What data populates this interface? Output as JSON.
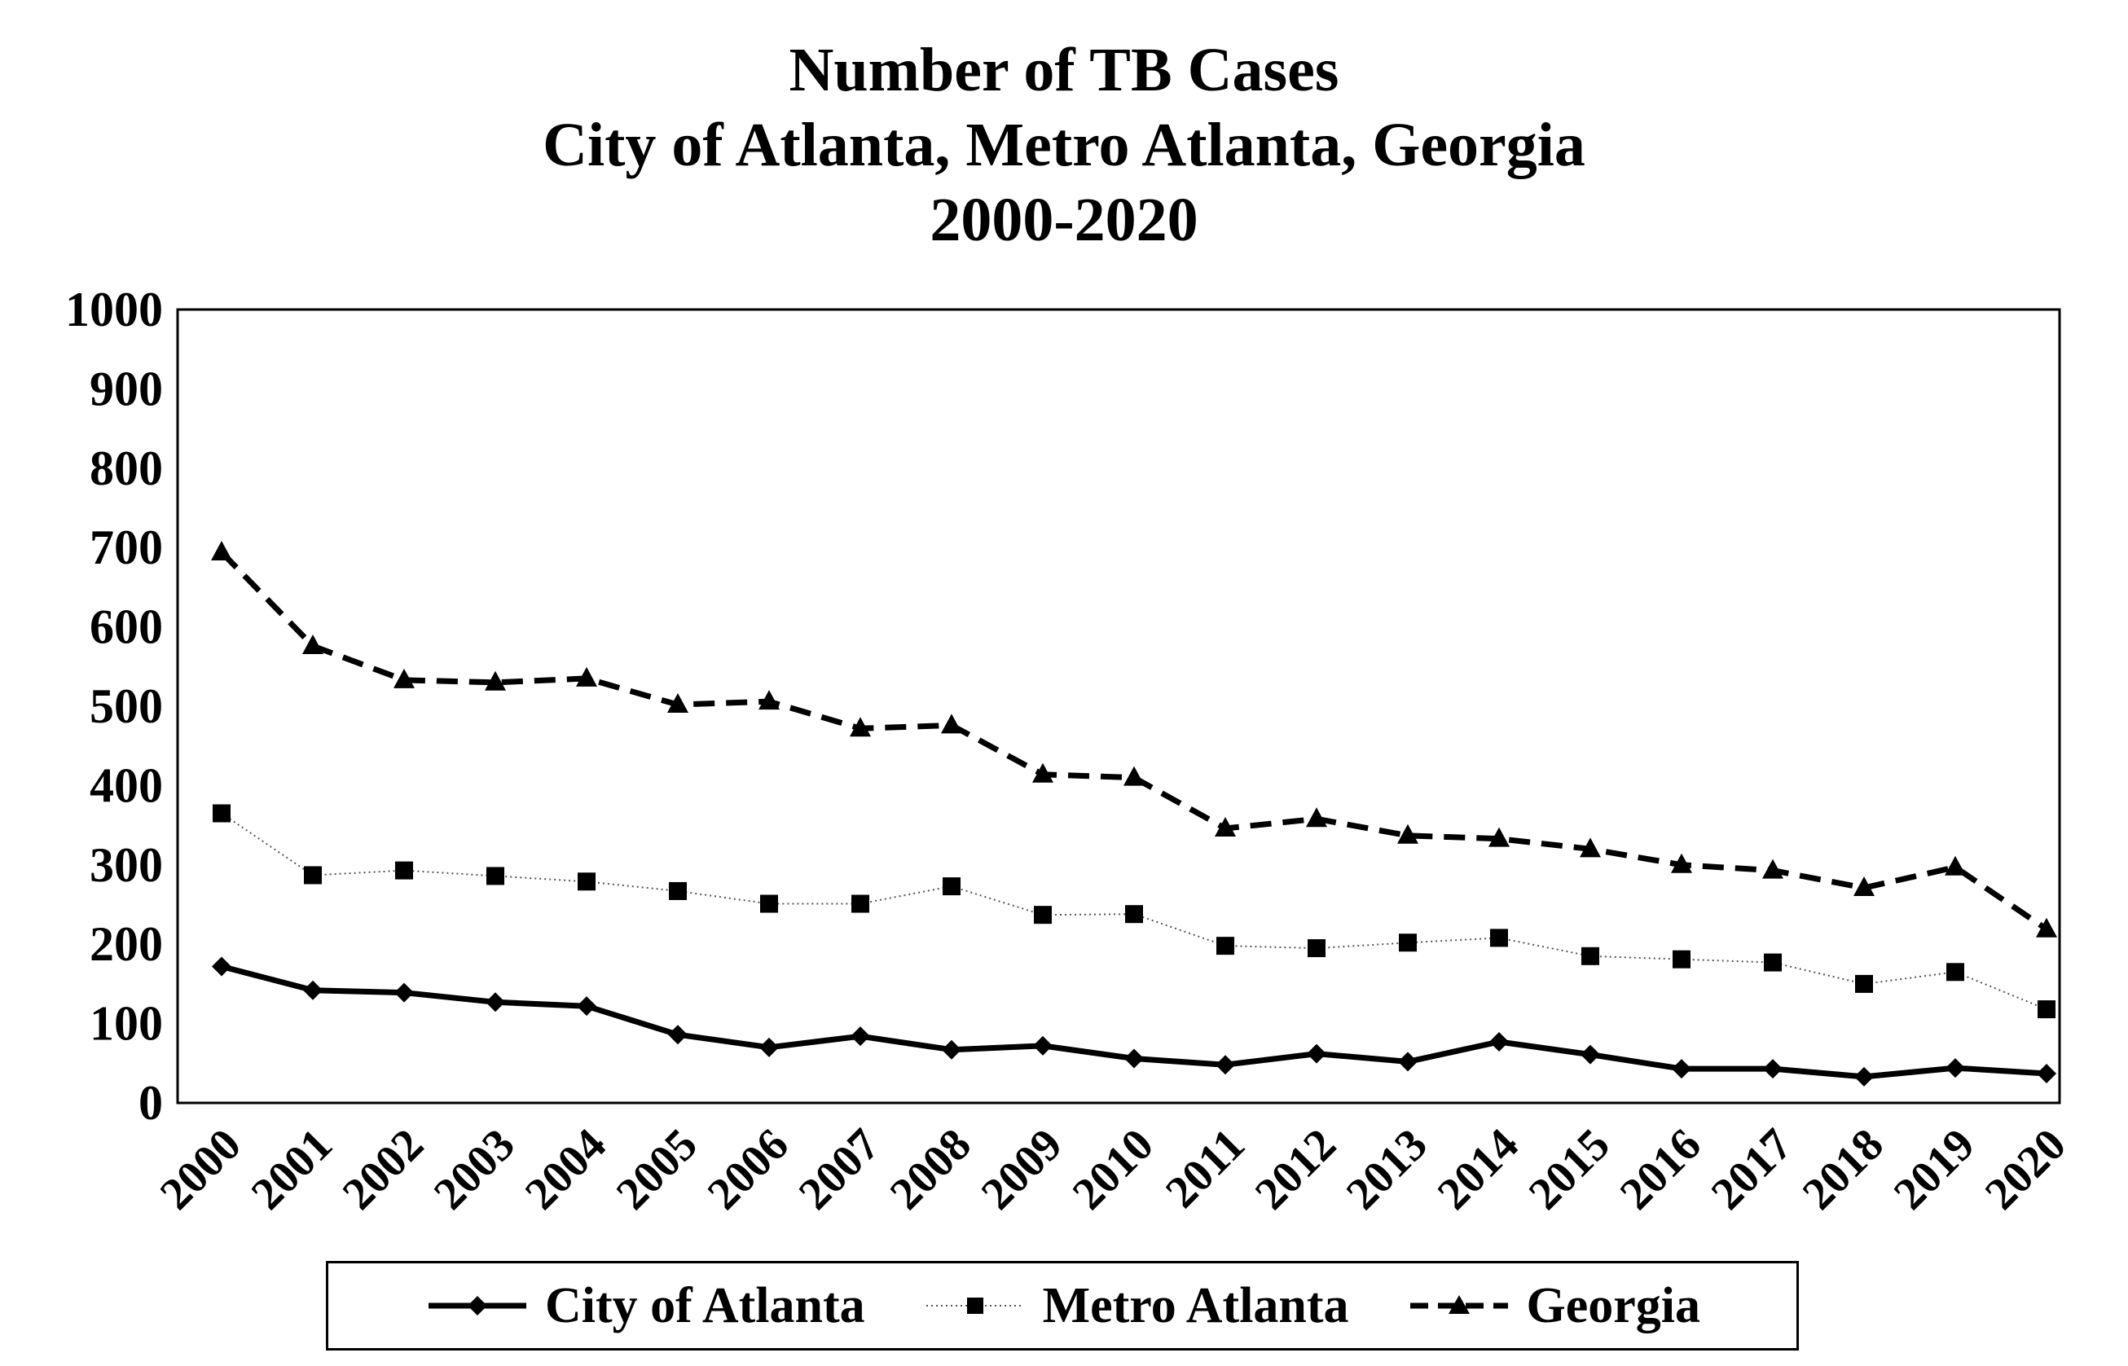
{
  "chart_data": {
    "type": "line",
    "title": [
      "Number of TB Cases",
      "City of Atlanta, Metro Atlanta, Georgia",
      "2000-2020"
    ],
    "xlabel": "",
    "ylabel": "",
    "ylim": [
      0,
      1000
    ],
    "yticks": [
      "0",
      "100",
      "200",
      "300",
      "400",
      "500",
      "600",
      "700",
      "800",
      "900",
      "1000"
    ],
    "categories": [
      "2000",
      "2001",
      "2002",
      "2003",
      "2004",
      "2005",
      "2006",
      "2007",
      "2008",
      "2009",
      "2010",
      "2011",
      "2012",
      "2013",
      "2014",
      "2015",
      "2016",
      "2017",
      "2018",
      "2019",
      "2020"
    ],
    "grid": false,
    "legend_position": "bottom",
    "series": [
      {
        "name": "City of Atlanta",
        "line_style": "solid",
        "marker": "diamond",
        "values": [
          172,
          142,
          139,
          127,
          122,
          86,
          70,
          84,
          67,
          72,
          56,
          48,
          62,
          52,
          77,
          61,
          43,
          43,
          33,
          44,
          37
        ]
      },
      {
        "name": "Metro Atlanta",
        "line_style": "dotted",
        "marker": "square",
        "values": [
          365,
          287,
          293,
          286,
          279,
          267,
          251,
          251,
          273,
          237,
          238,
          198,
          195,
          202,
          208,
          185,
          181,
          177,
          150,
          165,
          118
        ]
      },
      {
        "name": "Georgia",
        "line_style": "dashed",
        "marker": "triangle",
        "values": [
          694,
          576,
          533,
          530,
          535,
          502,
          506,
          472,
          476,
          414,
          410,
          346,
          358,
          337,
          333,
          320,
          300,
          293,
          271,
          297,
          219
        ]
      }
    ]
  }
}
